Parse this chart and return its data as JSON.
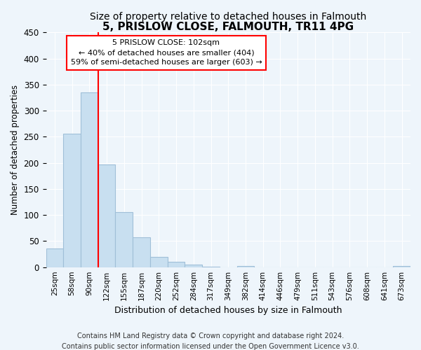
{
  "title": "5, PRISLOW CLOSE, FALMOUTH, TR11 4PG",
  "subtitle": "Size of property relative to detached houses in Falmouth",
  "xlabel": "Distribution of detached houses by size in Falmouth",
  "ylabel": "Number of detached properties",
  "bar_labels": [
    "25sqm",
    "58sqm",
    "90sqm",
    "122sqm",
    "155sqm",
    "187sqm",
    "220sqm",
    "252sqm",
    "284sqm",
    "317sqm",
    "349sqm",
    "382sqm",
    "414sqm",
    "446sqm",
    "479sqm",
    "511sqm",
    "543sqm",
    "576sqm",
    "608sqm",
    "641sqm",
    "673sqm"
  ],
  "bar_values": [
    36,
    256,
    335,
    197,
    105,
    57,
    20,
    10,
    5,
    1,
    0,
    2,
    0,
    0,
    0,
    0,
    0,
    0,
    0,
    0,
    2
  ],
  "bar_color": "#c8dff0",
  "bar_edge_color": "#a0bfd8",
  "vline_x": 3,
  "vline_color": "red",
  "annotation_title": "5 PRISLOW CLOSE: 102sqm",
  "annotation_line1": "← 40% of detached houses are smaller (404)",
  "annotation_line2": "59% of semi-detached houses are larger (603) →",
  "ylim": [
    0,
    450
  ],
  "yticks": [
    0,
    50,
    100,
    150,
    200,
    250,
    300,
    350,
    400,
    450
  ],
  "footnote1": "Contains HM Land Registry data © Crown copyright and database right 2024.",
  "footnote2": "Contains public sector information licensed under the Open Government Licence v3.0.",
  "background_color": "#eef5fb",
  "plot_background": "#eef5fb",
  "title_fontsize": 11,
  "subtitle_fontsize": 10,
  "ylabel_fontsize": 8.5,
  "xlabel_fontsize": 9,
  "tick_fontsize": 7.5,
  "ytick_fontsize": 8.5,
  "footnote_fontsize": 7
}
